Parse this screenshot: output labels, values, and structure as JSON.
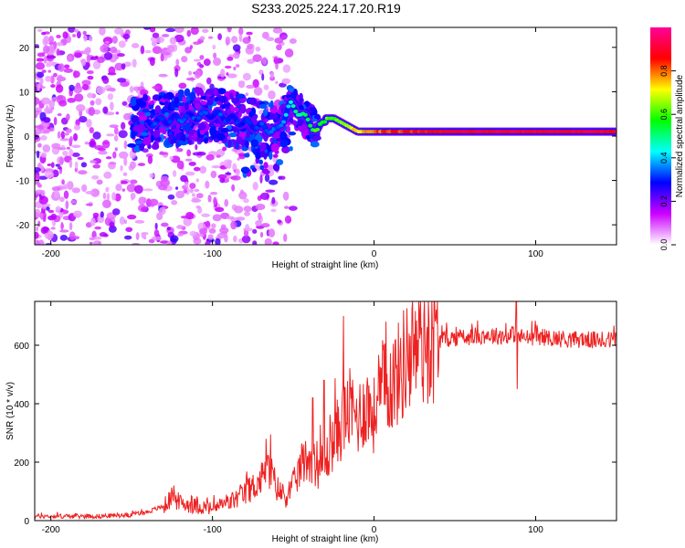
{
  "title": "S233.2025.224.17.20.R19",
  "chart_data": [
    {
      "type": "heatmap",
      "title": "S233.2025.224.17.20.R19",
      "xlabel": "Height of straight line (km)",
      "ylabel": "Frequency (Hz)",
      "xlim": [
        -210,
        150
      ],
      "ylim": [
        -24.5,
        24.5
      ],
      "xticks": [
        -200,
        -100,
        0,
        100
      ],
      "yticks": [
        -20,
        -10,
        0,
        10,
        20
      ],
      "colorbar": {
        "label": "Normalized spectral amplitude",
        "range": [
          0.0,
          1.0
        ],
        "ticks": [
          0.0,
          0.2,
          0.4,
          0.6,
          0.8
        ],
        "tick_labels": [
          "0.0",
          "0.2",
          "0.4",
          "0.6",
          "0.8"
        ],
        "colormap": [
          "#ffffff",
          "#cc00ff",
          "#0000ff",
          "#00ffff",
          "#00ff00",
          "#ffff00",
          "#ff0000",
          "#ff0099"
        ]
      },
      "ridge": {
        "description_values_x": [
          -140,
          -120,
          -100,
          -90,
          -80,
          -70,
          -60,
          -52,
          -45,
          -40,
          -35,
          -30,
          -25,
          -20,
          -15,
          -10,
          -5,
          0,
          20,
          60,
          100,
          150
        ],
        "frequency_hz": [
          3,
          4,
          5,
          4,
          3,
          2,
          1,
          7,
          5,
          3,
          1,
          4,
          4,
          3,
          2,
          1,
          1,
          1,
          1,
          1,
          1,
          1
        ],
        "amplitude": [
          0.3,
          0.3,
          0.3,
          0.3,
          0.3,
          0.3,
          0.35,
          0.45,
          0.5,
          0.55,
          0.6,
          0.6,
          0.62,
          0.65,
          0.7,
          0.72,
          0.75,
          0.8,
          0.85,
          0.9,
          0.9,
          0.9
        ]
      }
    },
    {
      "type": "line",
      "title": "",
      "xlabel": "Height of straight line (km)",
      "ylabel": "SNR (10 * v/v)",
      "xlim": [
        -210,
        150
      ],
      "ylim": [
        0,
        750
      ],
      "xticks": [
        -200,
        -100,
        0,
        100
      ],
      "yticks": [
        0,
        200,
        400,
        600
      ],
      "color": "#ee2222",
      "series": [
        {
          "name": "SNR",
          "x": [
            -210,
            -190,
            -170,
            -150,
            -140,
            -130,
            -125,
            -120,
            -110,
            -100,
            -90,
            -80,
            -70,
            -65,
            -60,
            -55,
            -50,
            -45,
            -40,
            -35,
            -30,
            -25,
            -20,
            -15,
            -10,
            -5,
            0,
            5,
            10,
            15,
            20,
            25,
            30,
            40,
            50,
            60,
            70,
            80,
            88,
            90,
            95,
            100,
            110,
            120,
            130,
            140,
            150
          ],
          "y": [
            15,
            15,
            15,
            20,
            30,
            50,
            80,
            60,
            50,
            40,
            60,
            90,
            140,
            180,
            110,
            80,
            120,
            190,
            220,
            180,
            200,
            280,
            330,
            380,
            350,
            400,
            360,
            440,
            470,
            500,
            560,
            590,
            610,
            620,
            625,
            630,
            635,
            630,
            640,
            630,
            625,
            630,
            625,
            620,
            620,
            615,
            620
          ],
          "spikes": [
            {
              "x": -124,
              "y": 120
            },
            {
              "x": -67,
              "y": 280
            },
            {
              "x": -64,
              "y": 295
            },
            {
              "x": -38,
              "y": 420
            },
            {
              "x": -31,
              "y": 480
            },
            {
              "x": -19,
              "y": 700
            },
            {
              "x": 88,
              "y": 750
            },
            {
              "x": 88.5,
              "y": 450
            }
          ]
        }
      ]
    }
  ]
}
